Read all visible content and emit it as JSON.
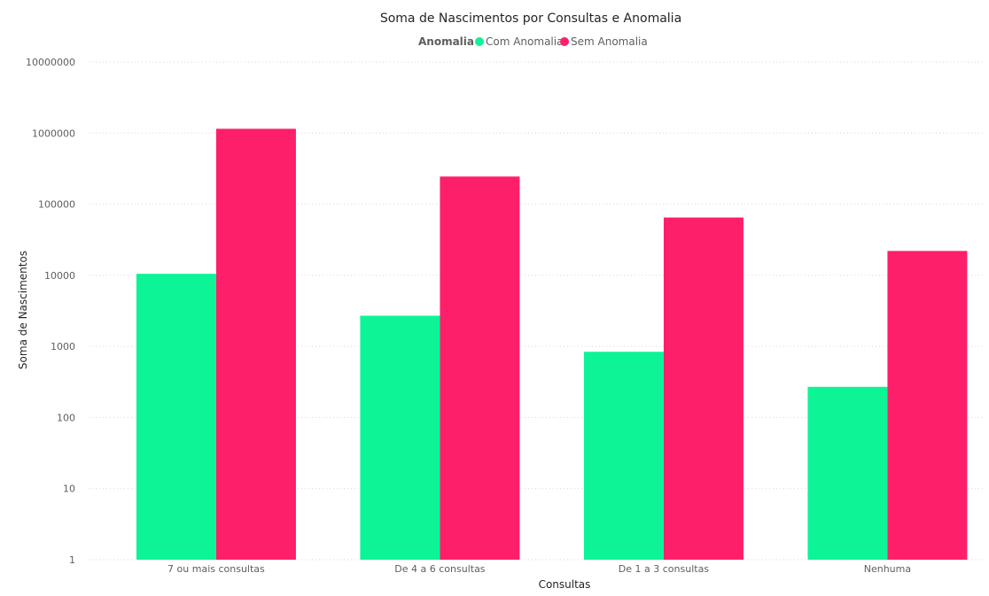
{
  "chart_data": {
    "type": "bar",
    "title": "Soma de Nascimentos por Consultas e Anomalia",
    "xlabel": "Consultas",
    "ylabel": "Soma de Nascimentos",
    "yscale": "log",
    "ylim": [
      1,
      10000000
    ],
    "yticks": [
      "1",
      "10",
      "100",
      "1000",
      "10000",
      "100000",
      "1000000",
      "10000000"
    ],
    "grid": true,
    "legend": {
      "title": "Anomalia",
      "placement": "top-center"
    },
    "categories": [
      "7 ou mais consultas",
      "De 4 a 6 consultas",
      "De 1 a 3 consultas",
      "Nenhuma"
    ],
    "series": [
      {
        "name": "Com Anomalia",
        "color": "#0df497",
        "values": [
          10500,
          2700,
          840,
          270
        ]
      },
      {
        "name": "Sem Anomalia",
        "color": "#fe1f6a",
        "values": [
          1150000,
          245000,
          65000,
          22000
        ]
      }
    ]
  }
}
